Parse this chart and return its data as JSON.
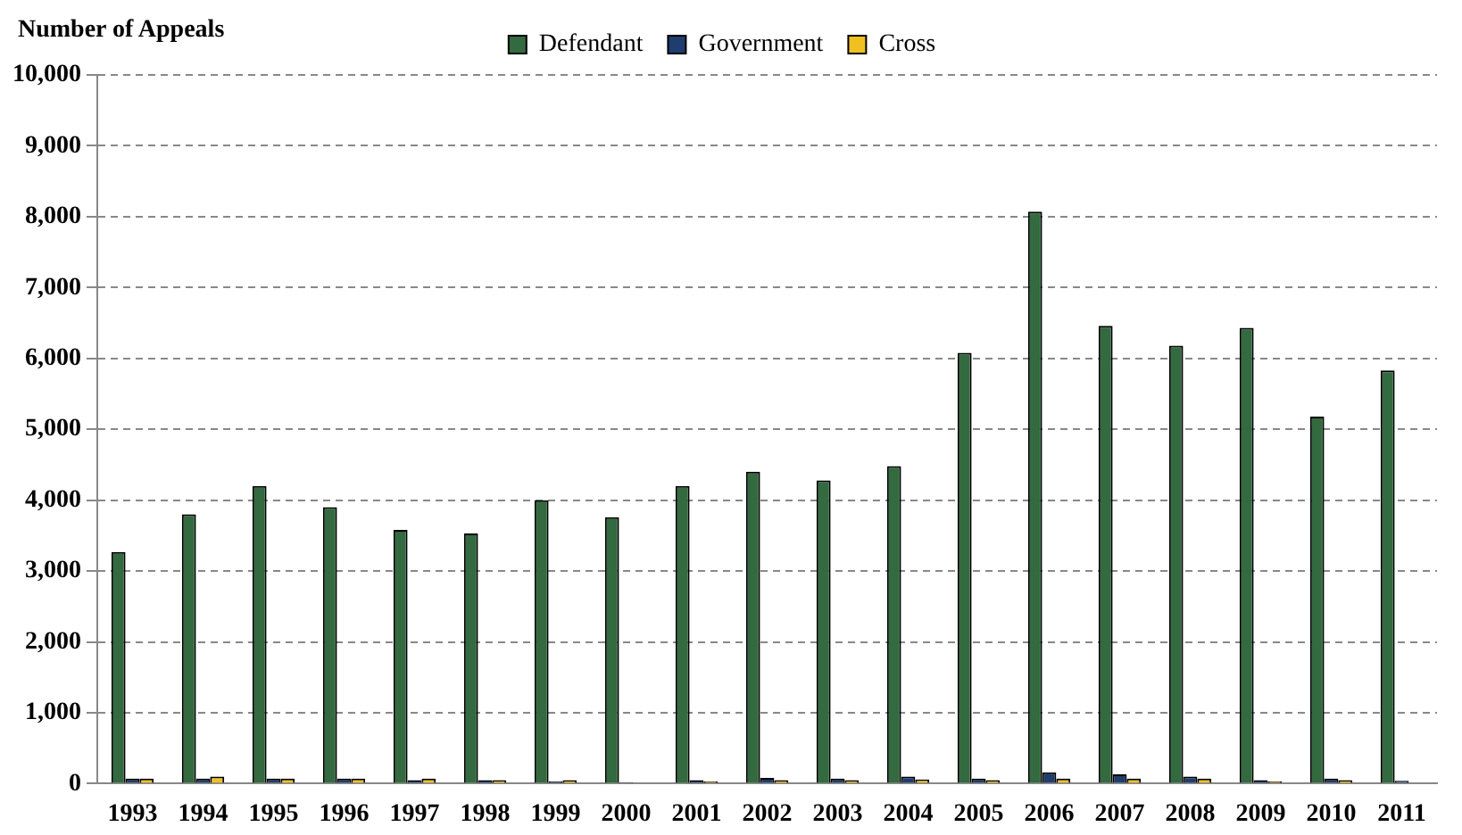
{
  "chart_data": {
    "type": "bar",
    "ylabel": "Number of Appeals",
    "categories": [
      "1993",
      "1994",
      "1995",
      "1996",
      "1997",
      "1998",
      "1999",
      "2000",
      "2001",
      "2002",
      "2003",
      "2004",
      "2005",
      "2006",
      "2007",
      "2008",
      "2009",
      "2010",
      "2011"
    ],
    "series": [
      {
        "name": "Defendant",
        "color": "#336a3f",
        "values": [
          3270,
          3800,
          4200,
          3900,
          3580,
          3530,
          4000,
          3760,
          4200,
          4400,
          4280,
          4480,
          6080,
          8070,
          6460,
          6180,
          6430,
          5180,
          5830
        ]
      },
      {
        "name": "Government",
        "color": "#1f3d6e",
        "values": [
          70,
          70,
          70,
          70,
          50,
          50,
          30,
          20,
          50,
          80,
          70,
          100,
          70,
          160,
          130,
          100,
          50,
          70,
          40
        ]
      },
      {
        "name": "Cross",
        "color": "#f0c020",
        "values": [
          70,
          100,
          70,
          70,
          70,
          50,
          50,
          null,
          30,
          50,
          50,
          60,
          50,
          70,
          70,
          70,
          30,
          50,
          null
        ]
      }
    ],
    "ylim": [
      0,
      10000
    ],
    "yticks": [
      0,
      {
        "value": 1000,
        "label": "1,000"
      },
      {
        "value": 2000,
        "label": "2,000"
      },
      {
        "value": 3000,
        "label": "3,000"
      },
      {
        "value": 4000,
        "label": "4,000"
      },
      {
        "value": 5000,
        "label": "5,000"
      },
      {
        "value": 6000,
        "label": "6,000"
      },
      {
        "value": 7000,
        "label": "7,000"
      },
      {
        "value": 8000,
        "label": "8,000"
      },
      {
        "value": 9000,
        "label": "9,000"
      },
      {
        "value": 10000,
        "label": "10,000"
      }
    ],
    "grid": "y",
    "legend": "top"
  }
}
